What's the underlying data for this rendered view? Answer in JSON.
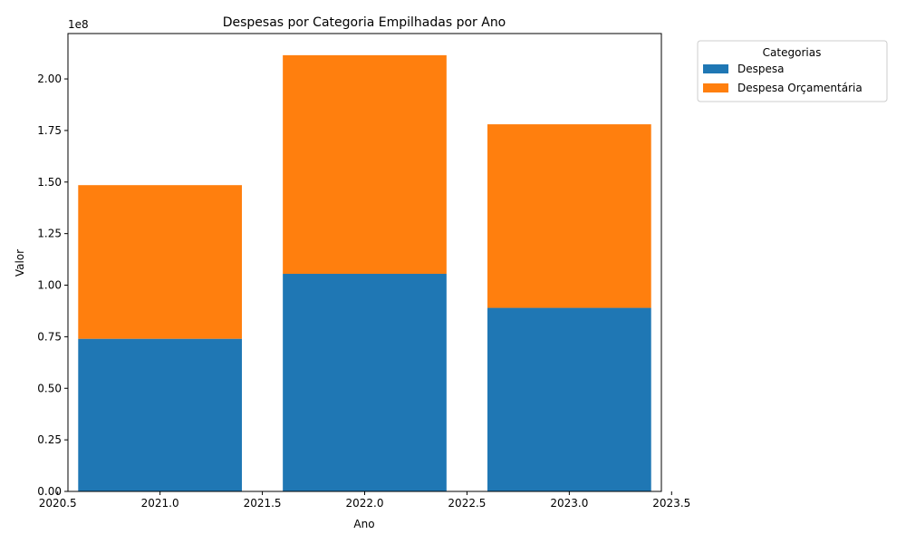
{
  "chart_data": {
    "type": "bar",
    "stacked": true,
    "title": "Despesas por Categoria Empilhadas por Ano",
    "xlabel": "Ano",
    "ylabel": "Valor",
    "y_multiplier_label": "1e8",
    "x": [
      2021,
      2022,
      2023
    ],
    "xlim": [
      2020.55,
      2023.45
    ],
    "ylim": [
      0,
      2.22
    ],
    "x_ticks": [
      2020.5,
      2021.0,
      2021.5,
      2022.0,
      2022.5,
      2023.0,
      2023.5
    ],
    "y_ticks": [
      0.0,
      0.25,
      0.5,
      0.75,
      1.0,
      1.25,
      1.5,
      1.75,
      2.0
    ],
    "series": [
      {
        "name": "Despesa",
        "color": "#1f77b4",
        "values": [
          0.74,
          1.055,
          0.89
        ]
      },
      {
        "name": "Despesa Orçamentária",
        "color": "#ff7f0e",
        "values": [
          0.745,
          1.06,
          0.89
        ]
      }
    ],
    "legend": {
      "title": "Categorias",
      "placement": "outside-top-right"
    },
    "grid": false
  }
}
